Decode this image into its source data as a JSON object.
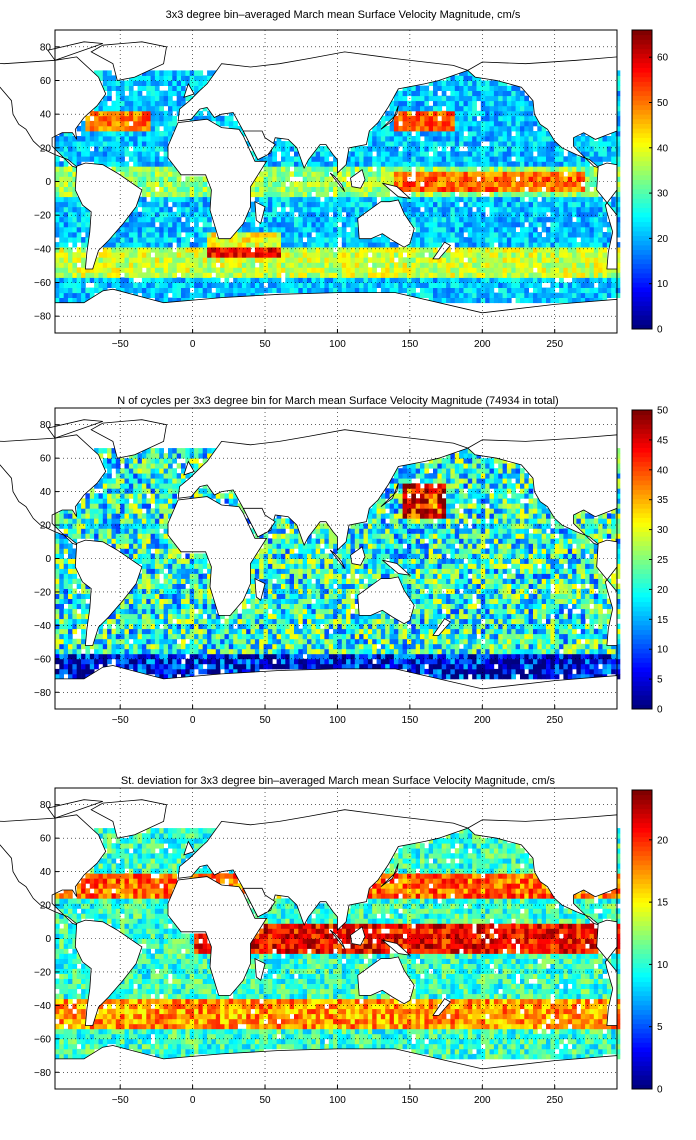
{
  "maps": [
    {
      "id": "mean",
      "title": "3x3 degree bin–averaged March mean Surface Velocity Magnitude, cm/s",
      "colorbar_ticks": [
        "0",
        "10",
        "20",
        "30",
        "40",
        "50",
        "60"
      ],
      "colorbar_max": 66
    },
    {
      "id": "count",
      "title": "N of cycles per 3x3 degree bin for March mean Surface Velocity Magnitude (74934 in total)",
      "colorbar_ticks": [
        "0",
        "5",
        "10",
        "15",
        "20",
        "25",
        "30",
        "35",
        "40",
        "45",
        "50"
      ],
      "colorbar_max": 50
    },
    {
      "id": "std",
      "title": "St. deviation for 3x3 degree bin–averaged March mean Surface Velocity Magnitude, cm/s",
      "colorbar_ticks": [
        "0",
        "5",
        "10",
        "15",
        "20"
      ],
      "colorbar_max": 24
    }
  ],
  "x_ticks": [
    "−50",
    "0",
    "50",
    "100",
    "150",
    "200",
    "250"
  ],
  "y_ticks": [
    "80",
    "60",
    "40",
    "20",
    "0",
    "−20",
    "−40",
    "−60",
    "−80"
  ],
  "chart_data": {
    "type": "heatmap",
    "x_range": [
      -95,
      293
    ],
    "y_range": [
      -90,
      90
    ],
    "bin_size_deg": 3,
    "grid": true,
    "colormap": "jet",
    "panels": [
      {
        "title": "3x3 degree bin–averaged March mean Surface Velocity Magnitude, cm/s",
        "zlim": [
          0,
          66
        ]
      },
      {
        "title": "N of cycles per 3x3 degree bin for March mean Surface Velocity Magnitude (74934 in total)",
        "zlim": [
          0,
          50
        ],
        "total": 74934
      },
      {
        "title": "St. deviation for 3x3 degree bin–averaged March mean Surface Velocity Magnitude, cm/s",
        "zlim": [
          0,
          24
        ]
      }
    ]
  }
}
